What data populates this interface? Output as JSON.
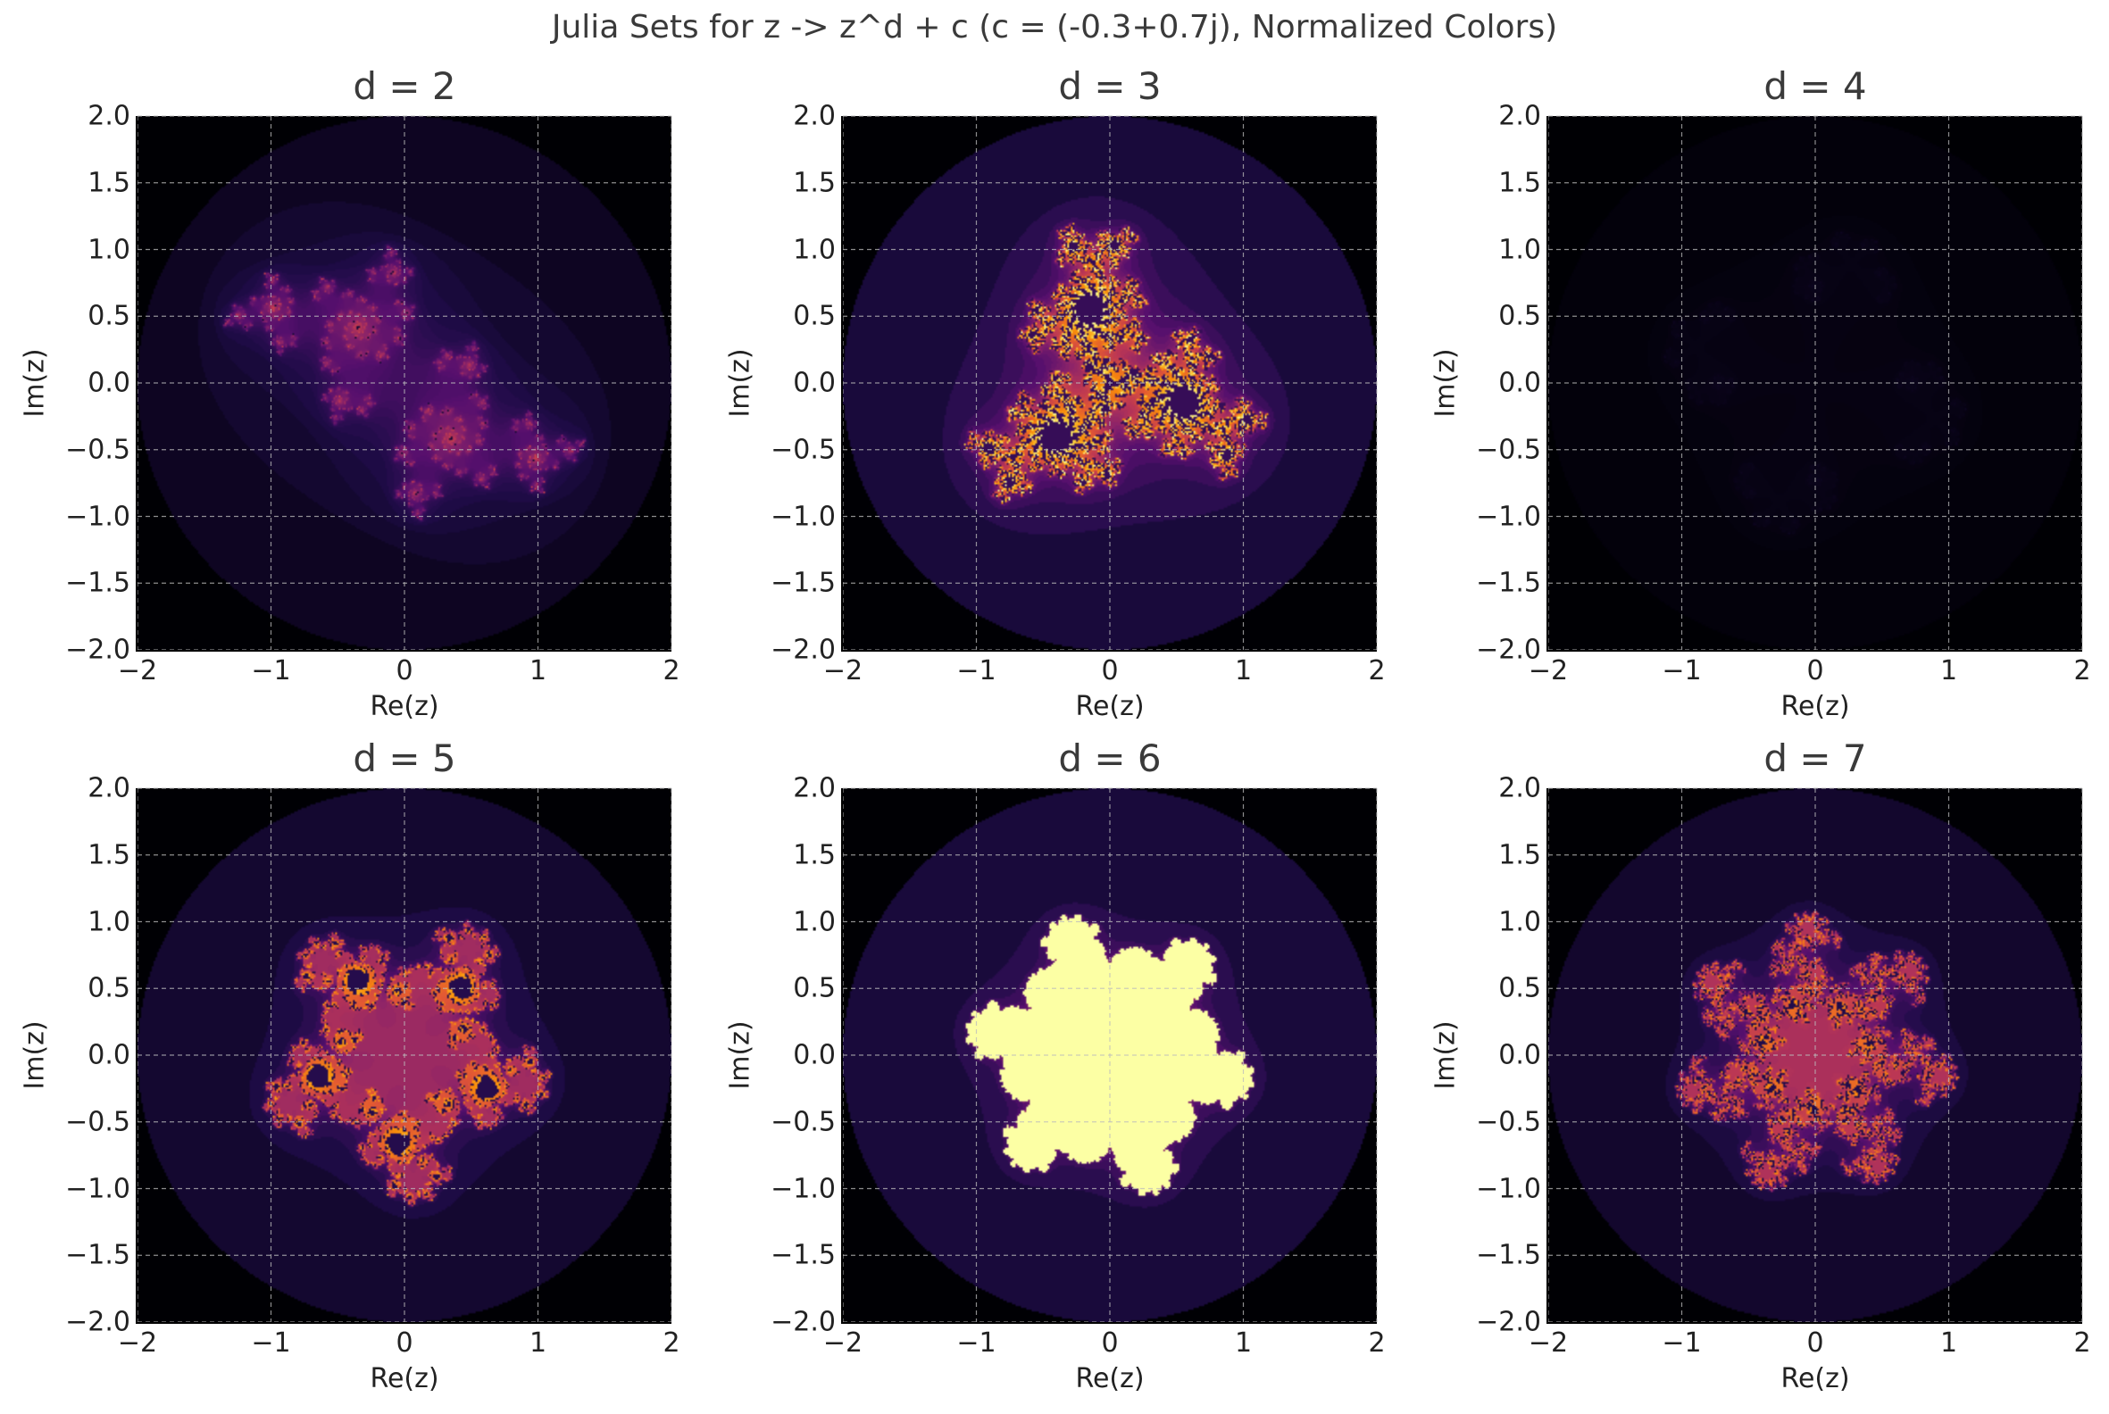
{
  "figure": {
    "title": "Julia Sets for z -> z^d + c (c = (-0.3+0.7j), Normalized Colors)"
  },
  "chart_data": [
    {
      "type": "heatmap",
      "title": "d = 2",
      "degree": 2,
      "c": [
        -0.3,
        0.7
      ],
      "xlabel": "Re(z)",
      "ylabel": "Im(z)",
      "xlim": [
        -2,
        2
      ],
      "ylim": [
        -2,
        2
      ],
      "xticks": [
        -2,
        -1,
        0,
        1,
        2
      ],
      "yticks": [
        -2.0,
        -1.5,
        -1.0,
        -0.5,
        0.0,
        0.5,
        1.0,
        1.5,
        2.0
      ],
      "colormap": "inferno",
      "brightness": 0.55,
      "grid": true
    },
    {
      "type": "heatmap",
      "title": "d = 3",
      "degree": 3,
      "c": [
        -0.3,
        0.7
      ],
      "xlabel": "Re(z)",
      "ylabel": "Im(z)",
      "xlim": [
        -2,
        2
      ],
      "ylim": [
        -2,
        2
      ],
      "xticks": [
        -2,
        -1,
        0,
        1,
        2
      ],
      "yticks": [
        -2.0,
        -1.5,
        -1.0,
        -0.5,
        0.0,
        0.5,
        1.0,
        1.5,
        2.0
      ],
      "colormap": "inferno",
      "brightness": 1.0,
      "grid": true
    },
    {
      "type": "heatmap",
      "title": "d = 4",
      "degree": 4,
      "c": [
        -0.3,
        0.7
      ],
      "xlabel": "Re(z)",
      "ylabel": "Im(z)",
      "xlim": [
        -2,
        2
      ],
      "ylim": [
        -2,
        2
      ],
      "xticks": [
        -2,
        -1,
        0,
        1,
        2
      ],
      "yticks": [
        -2.0,
        -1.5,
        -1.0,
        -0.5,
        0.0,
        0.5,
        1.0,
        1.5,
        2.0
      ],
      "colormap": "inferno",
      "brightness": 0.12,
      "grid": true
    },
    {
      "type": "heatmap",
      "title": "d = 5",
      "degree": 5,
      "c": [
        -0.3,
        0.7
      ],
      "xlabel": "Re(z)",
      "ylabel": "Im(z)",
      "xlim": [
        -2,
        2
      ],
      "ylim": [
        -2,
        2
      ],
      "xticks": [
        -2,
        -1,
        0,
        1,
        2
      ],
      "yticks": [
        -2.0,
        -1.5,
        -1.0,
        -0.5,
        0.0,
        0.5,
        1.0,
        1.5,
        2.0
      ],
      "colormap": "inferno",
      "brightness": 0.8,
      "grid": true
    },
    {
      "type": "heatmap",
      "title": "d = 6",
      "degree": 6,
      "c": [
        -0.3,
        0.7
      ],
      "xlabel": "Re(z)",
      "ylabel": "Im(z)",
      "xlim": [
        -2,
        2
      ],
      "ylim": [
        -2,
        2
      ],
      "xticks": [
        -2,
        -1,
        0,
        1,
        2
      ],
      "yticks": [
        -2.0,
        -1.5,
        -1.0,
        -0.5,
        0.0,
        0.5,
        1.0,
        1.5,
        2.0
      ],
      "colormap": "inferno",
      "brightness": 1.0,
      "interior_fill": "#fcffa4",
      "grid": true
    },
    {
      "type": "heatmap",
      "title": "d = 7",
      "degree": 7,
      "c": [
        -0.3,
        0.7
      ],
      "xlabel": "Re(z)",
      "ylabel": "Im(z)",
      "xlim": [
        -2,
        2
      ],
      "ylim": [
        -2,
        2
      ],
      "xticks": [
        -2,
        -1,
        0,
        1,
        2
      ],
      "yticks": [
        -2.0,
        -1.5,
        -1.0,
        -0.5,
        0.0,
        0.5,
        1.0,
        1.5,
        2.0
      ],
      "colormap": "inferno",
      "brightness": 0.75,
      "grid": true
    }
  ]
}
